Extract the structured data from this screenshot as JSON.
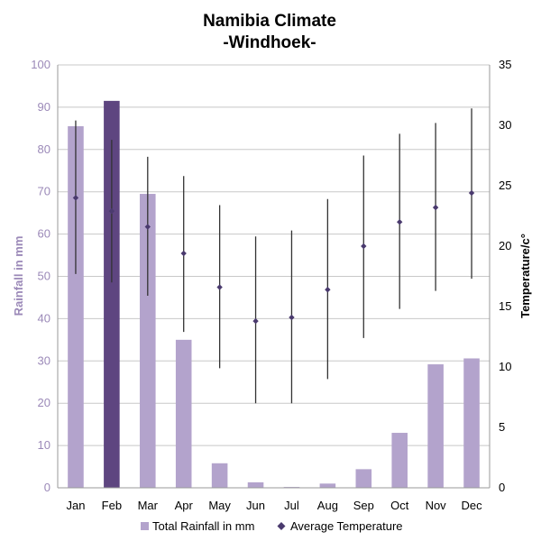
{
  "chart_data": {
    "type": "bar",
    "title_line1": "Namibia Climate",
    "title_line2": "-Windhoek-",
    "categories": [
      "Jan",
      "Feb",
      "Mar",
      "Apr",
      "May",
      "Jun",
      "Jul",
      "Aug",
      "Sep",
      "Oct",
      "Nov",
      "Dec"
    ],
    "y_left": {
      "label": "Rainfall in mm",
      "lim": [
        0,
        100
      ],
      "ticks": [
        0,
        10,
        20,
        30,
        40,
        50,
        60,
        70,
        80,
        90,
        100
      ]
    },
    "y_right": {
      "label": "Temperature/c°",
      "lim": [
        0,
        35
      ],
      "ticks": [
        0,
        5,
        10,
        15,
        20,
        25,
        30,
        35
      ]
    },
    "grid": true,
    "legend_position": "bottom",
    "series": [
      {
        "name": "Total Rainfall in mm",
        "type": "bar",
        "axis": "left",
        "color": "#b3a3cc",
        "highlight_color": "#5e4580",
        "highlight_index": 1,
        "values": [
          85.5,
          91.5,
          69.5,
          35,
          5.8,
          1.3,
          0.2,
          1.0,
          4.4,
          13,
          29.2,
          30.6
        ]
      },
      {
        "name": "Average Temperature",
        "type": "point-range",
        "axis": "right",
        "color": "#4a3a6e",
        "values": [
          24.0,
          22.9,
          21.6,
          19.4,
          16.6,
          13.8,
          14.1,
          16.4,
          20.0,
          22.0,
          23.2,
          24.4
        ],
        "max": [
          30.4,
          28.8,
          27.4,
          25.8,
          23.4,
          20.8,
          21.3,
          23.9,
          27.5,
          29.3,
          30.2,
          31.4
        ],
        "min": [
          17.7,
          17.0,
          15.9,
          12.9,
          9.9,
          7.0,
          7.0,
          9.0,
          12.4,
          14.8,
          16.3,
          17.3
        ]
      }
    ]
  }
}
